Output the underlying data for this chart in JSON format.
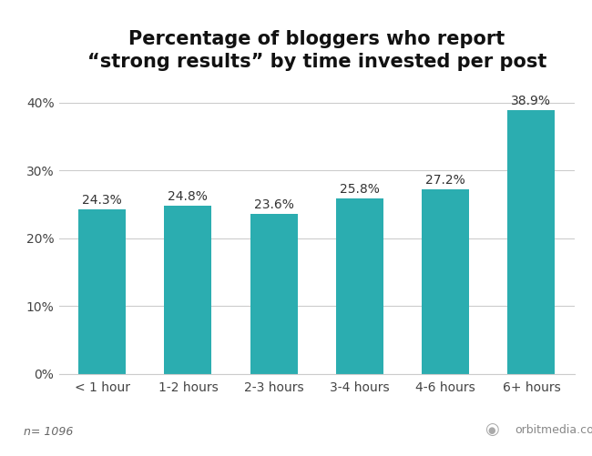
{
  "title_line1": "Percentage of bloggers who report",
  "title_line2": "“strong results” by time invested per post",
  "categories": [
    "< 1 hour",
    "1-2 hours",
    "2-3 hours",
    "3-4 hours",
    "4-6 hours",
    "6+ hours"
  ],
  "values": [
    24.3,
    24.8,
    23.6,
    25.8,
    27.2,
    38.9
  ],
  "bar_color": "#2badb0",
  "background_color": "#ffffff",
  "ylim": [
    0,
    43
  ],
  "yticks": [
    0,
    10,
    20,
    30,
    40
  ],
  "ytick_labels": [
    "0%",
    "10%",
    "20%",
    "30%",
    "40%"
  ],
  "title_fontsize": 15,
  "label_fontsize": 10,
  "tick_fontsize": 10,
  "footnote": "n= 1096",
  "watermark": "orbitmedia.com",
  "title_fontweight": "bold",
  "bar_width": 0.55
}
